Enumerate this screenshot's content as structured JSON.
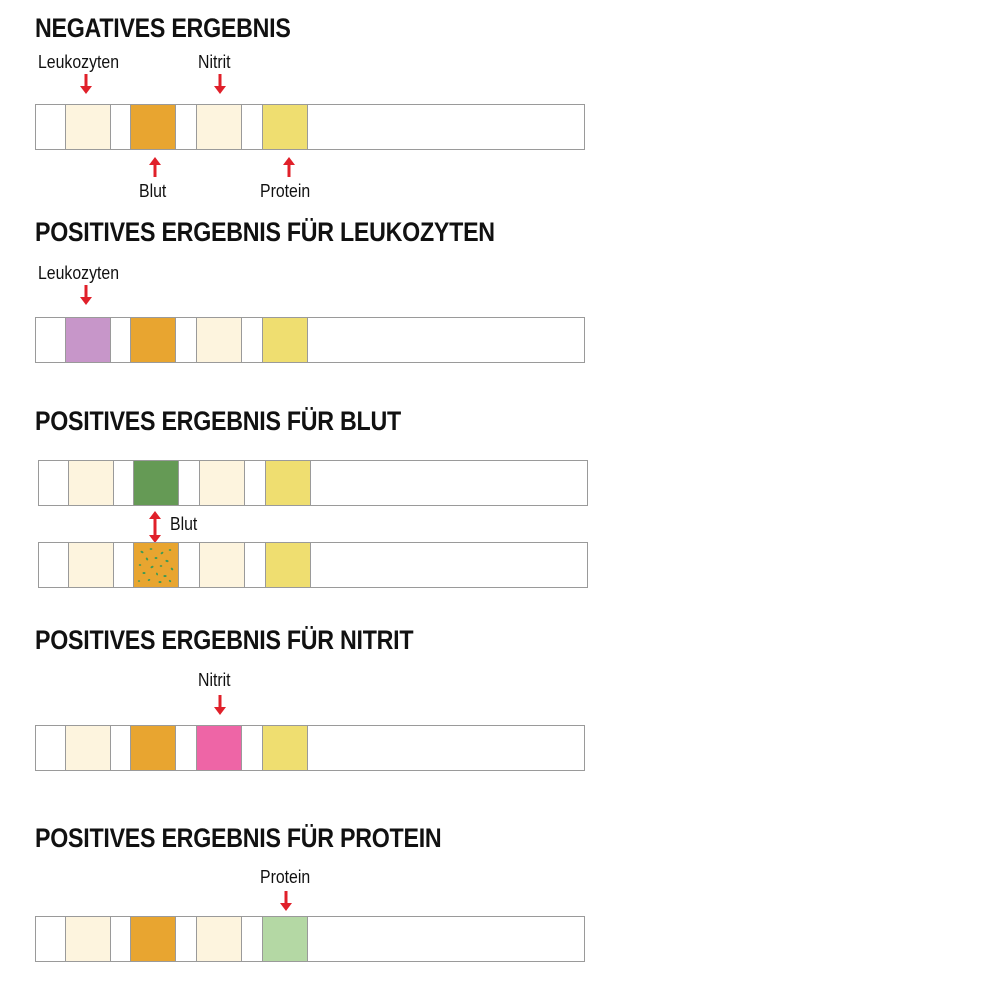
{
  "colors": {
    "neutral": "#fdf4de",
    "blood_negative": "#e8a530",
    "protein_negative": "#efde70",
    "leukocytes_positive": "#c796c9",
    "blood_positive": "#659a55",
    "nitrite_positive": "#ee65a6",
    "protein_positive": "#b4d8a4",
    "speckle": "#3d9a55",
    "arrow": "#e0202a"
  },
  "sections": [
    {
      "title": "NEGATIVES ERGEBNIS",
      "labels": {
        "leukocytes": "Leukozyten",
        "nitrite": "Nitrit",
        "blood": "Blut",
        "protein": "Protein"
      },
      "strip": [
        "neutral",
        "blood_negative",
        "neutral",
        "protein_negative"
      ]
    },
    {
      "title": "POSITIVES ERGEBNIS FÜR LEUKOZYTEN",
      "labels": {
        "leukocytes": "Leukozyten"
      },
      "strip": [
        "leukocytes_positive",
        "blood_negative",
        "neutral",
        "protein_negative"
      ]
    },
    {
      "title": "POSITIVES ERGEBNIS FÜR BLUT",
      "labels": {
        "blood": "Blut"
      },
      "strip": [
        "neutral",
        "blood_positive",
        "neutral",
        "protein_negative"
      ],
      "strip_alt": [
        "neutral",
        "blood_negative_speckled",
        "neutral",
        "protein_negative"
      ]
    },
    {
      "title": "POSITIVES ERGEBNIS FÜR NITRIT",
      "labels": {
        "nitrite": "Nitrit"
      },
      "strip": [
        "neutral",
        "blood_negative",
        "nitrite_positive",
        "protein_negative"
      ]
    },
    {
      "title": "POSITIVES ERGEBNIS FÜR PROTEIN",
      "labels": {
        "protein": "Protein"
      },
      "strip": [
        "neutral",
        "blood_negative",
        "neutral",
        "protein_positive"
      ]
    }
  ]
}
